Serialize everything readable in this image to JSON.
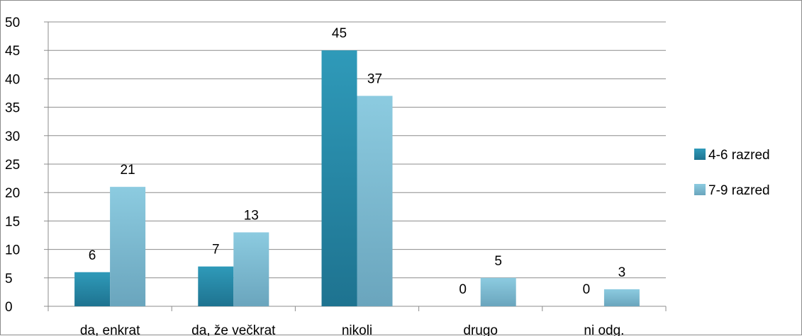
{
  "chart_data": {
    "type": "bar",
    "categories": [
      "da, enkrat",
      "da, že večkrat",
      "nikoli",
      "drugo",
      "ni odg."
    ],
    "series": [
      {
        "name": "4-6 razred",
        "values": [
          6,
          7,
          45,
          0,
          0
        ],
        "color": "#2f9ab9",
        "color_dark": "#1e7390"
      },
      {
        "name": "7-9 razred",
        "values": [
          21,
          13,
          37,
          5,
          3
        ],
        "color": "#8ccbe0",
        "color_dark": "#6aa5bd"
      }
    ],
    "ylim": [
      0,
      50
    ],
    "yticks": [
      0,
      5,
      10,
      15,
      20,
      25,
      30,
      35,
      40,
      45,
      50
    ],
    "grid": true,
    "legend_position": "right",
    "title": "",
    "xlabel": "",
    "ylabel": ""
  }
}
